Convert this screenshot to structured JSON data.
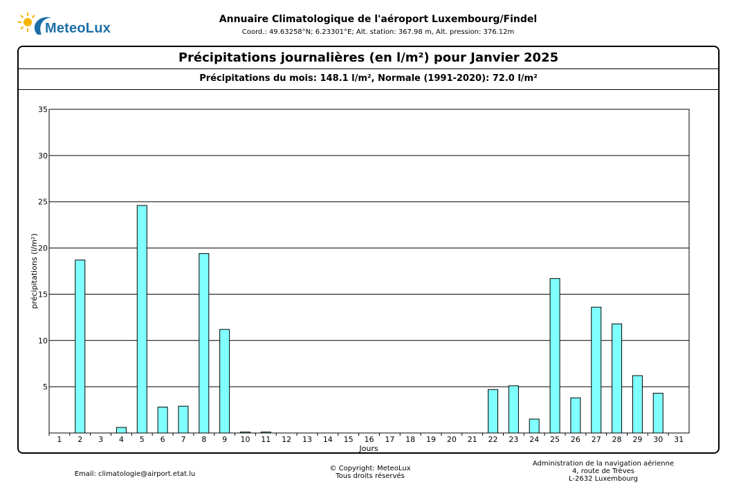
{
  "brand": {
    "name": "MeteoLux"
  },
  "header": {
    "title": "Annuaire Climatologique de l'aéroport Luxembourg/Findel",
    "subtitle": "Coord.: 49.63258°N; 6.23301°E; Alt. station: 367.98 m, Alt. pression: 376.12m"
  },
  "chart_data": {
    "type": "bar",
    "title": "Précipitations journalières (en l/m²) pour Janvier 2025",
    "subtitle": "Précipitations du mois: 148.1 l/m², Normale (1991-2020): 72.0 l/m²",
    "xlabel": "Jours",
    "ylabel": "précipitations (l/m²)",
    "ylim": [
      0,
      35
    ],
    "yticks": [
      5,
      10,
      15,
      20,
      25,
      30,
      35
    ],
    "grid": true,
    "bar_color": "#80ffff",
    "categories": [
      "1",
      "2",
      "3",
      "4",
      "5",
      "6",
      "7",
      "8",
      "9",
      "10",
      "11",
      "12",
      "13",
      "14",
      "15",
      "16",
      "17",
      "18",
      "19",
      "20",
      "21",
      "22",
      "23",
      "24",
      "25",
      "26",
      "27",
      "28",
      "29",
      "30",
      "31"
    ],
    "values": [
      0,
      18.7,
      0,
      0.6,
      24.6,
      2.8,
      2.9,
      19.4,
      11.2,
      0.1,
      0.1,
      0,
      0,
      0,
      0,
      0,
      0,
      0,
      0,
      0,
      0,
      4.7,
      5.1,
      1.5,
      16.7,
      3.8,
      13.6,
      11.8,
      6.2,
      4.3,
      0
    ]
  },
  "footer": {
    "email": "Email: climatologie@airport.etat.lu",
    "copyright_line1": "© Copyright: MeteoLux",
    "copyright_line2": "Tous droits réservés",
    "address_line1": "Administration de la navigation aérienne",
    "address_line2": "4, route de Trèves",
    "address_line3": "L-2632 Luxembourg"
  }
}
